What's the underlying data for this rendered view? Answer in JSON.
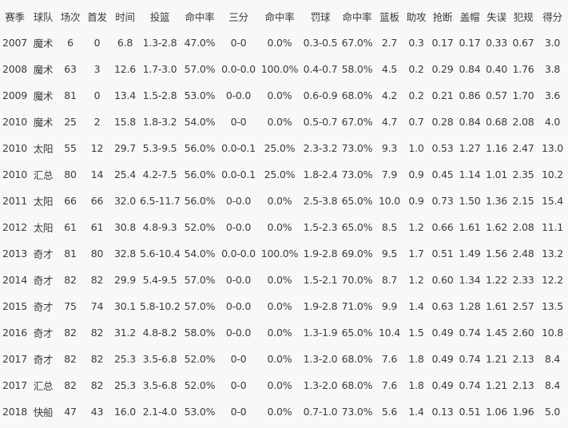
{
  "table": {
    "headers": [
      "赛季",
      "球队",
      "场次",
      "首发",
      "时间",
      "投篮",
      "命中率",
      "三分",
      "命中率",
      "罚球",
      "命中率",
      "篮板",
      "助攻",
      "抢断",
      "盖帽",
      "失误",
      "犯规",
      "得分"
    ],
    "rows": [
      [
        "2007",
        "魔术",
        "6",
        "0",
        "6.8",
        "1.3-2.8",
        "47.0%",
        "0-0",
        "0.0%",
        "0.3-0.5",
        "67.0%",
        "2.7",
        "0.3",
        "0.17",
        "0.17",
        "0.33",
        "0.67",
        "3.0"
      ],
      [
        "2008",
        "魔术",
        "63",
        "3",
        "12.6",
        "1.7-3.0",
        "57.0%",
        "0.0-0.0",
        "100.0%",
        "0.4-0.7",
        "58.0%",
        "4.5",
        "0.2",
        "0.29",
        "0.84",
        "0.40",
        "1.76",
        "3.8"
      ],
      [
        "2009",
        "魔术",
        "81",
        "0",
        "13.4",
        "1.5-2.8",
        "53.0%",
        "0-0.0",
        "0.0%",
        "0.6-0.9",
        "68.0%",
        "4.2",
        "0.2",
        "0.21",
        "0.86",
        "0.57",
        "1.70",
        "3.6"
      ],
      [
        "2010",
        "魔术",
        "25",
        "2",
        "15.8",
        "1.8-3.2",
        "54.0%",
        "0-0",
        "0.0%",
        "0.5-0.7",
        "67.0%",
        "4.7",
        "0.7",
        "0.28",
        "0.84",
        "0.68",
        "2.08",
        "4.0"
      ],
      [
        "2010",
        "太阳",
        "55",
        "12",
        "29.7",
        "5.3-9.5",
        "56.0%",
        "0.0-0.1",
        "25.0%",
        "2.3-3.2",
        "73.0%",
        "9.3",
        "1.0",
        "0.53",
        "1.27",
        "1.16",
        "2.47",
        "13.0"
      ],
      [
        "2010",
        "汇总",
        "80",
        "14",
        "25.4",
        "4.2-7.5",
        "56.0%",
        "0.0-0.1",
        "25.0%",
        "1.8-2.4",
        "73.0%",
        "7.9",
        "0.9",
        "0.45",
        "1.14",
        "1.01",
        "2.35",
        "10.2"
      ],
      [
        "2011",
        "太阳",
        "66",
        "66",
        "32.0",
        "6.5-11.7",
        "56.0%",
        "0-0.0",
        "0.0%",
        "2.5-3.8",
        "65.0%",
        "10.0",
        "0.9",
        "0.73",
        "1.50",
        "1.36",
        "2.15",
        "15.4"
      ],
      [
        "2012",
        "太阳",
        "61",
        "61",
        "30.8",
        "4.8-9.3",
        "52.0%",
        "0-0.0",
        "0.0%",
        "1.5-2.3",
        "65.0%",
        "8.5",
        "1.2",
        "0.66",
        "1.61",
        "1.62",
        "2.08",
        "11.1"
      ],
      [
        "2013",
        "奇才",
        "81",
        "80",
        "32.8",
        "5.6-10.4",
        "54.0%",
        "0.0-0.0",
        "100.0%",
        "1.9-2.8",
        "69.0%",
        "9.5",
        "1.7",
        "0.51",
        "1.49",
        "1.56",
        "2.48",
        "13.2"
      ],
      [
        "2014",
        "奇才",
        "82",
        "82",
        "29.9",
        "5.4-9.5",
        "57.0%",
        "0-0.0",
        "0.0%",
        "1.5-2.1",
        "70.0%",
        "8.7",
        "1.2",
        "0.60",
        "1.34",
        "1.22",
        "2.33",
        "12.2"
      ],
      [
        "2015",
        "奇才",
        "75",
        "74",
        "30.1",
        "5.8-10.2",
        "57.0%",
        "0-0.0",
        "0.0%",
        "1.9-2.8",
        "71.0%",
        "9.9",
        "1.4",
        "0.63",
        "1.28",
        "1.61",
        "2.57",
        "13.5"
      ],
      [
        "2016",
        "奇才",
        "82",
        "82",
        "31.2",
        "4.8-8.2",
        "58.0%",
        "0-0.0",
        "0.0%",
        "1.3-1.9",
        "65.0%",
        "10.4",
        "1.5",
        "0.49",
        "0.74",
        "1.45",
        "2.60",
        "10.8"
      ],
      [
        "2017",
        "奇才",
        "82",
        "82",
        "25.3",
        "3.5-6.8",
        "52.0%",
        "0-0",
        "0.0%",
        "1.3-2.0",
        "68.0%",
        "7.6",
        "1.8",
        "0.49",
        "0.74",
        "1.21",
        "2.13",
        "8.4"
      ],
      [
        "2017",
        "汇总",
        "82",
        "82",
        "25.3",
        "3.5-6.8",
        "52.0%",
        "0-0",
        "0.0%",
        "1.3-2.0",
        "68.0%",
        "7.6",
        "1.8",
        "0.49",
        "0.74",
        "1.21",
        "2.13",
        "8.4"
      ],
      [
        "2018",
        "快船",
        "47",
        "43",
        "16.0",
        "2.1-4.0",
        "53.0%",
        "0-0",
        "0.0%",
        "0.7-1.0",
        "73.0%",
        "5.6",
        "1.4",
        "0.13",
        "0.51",
        "1.06",
        "1.96",
        "5.0"
      ]
    ]
  }
}
